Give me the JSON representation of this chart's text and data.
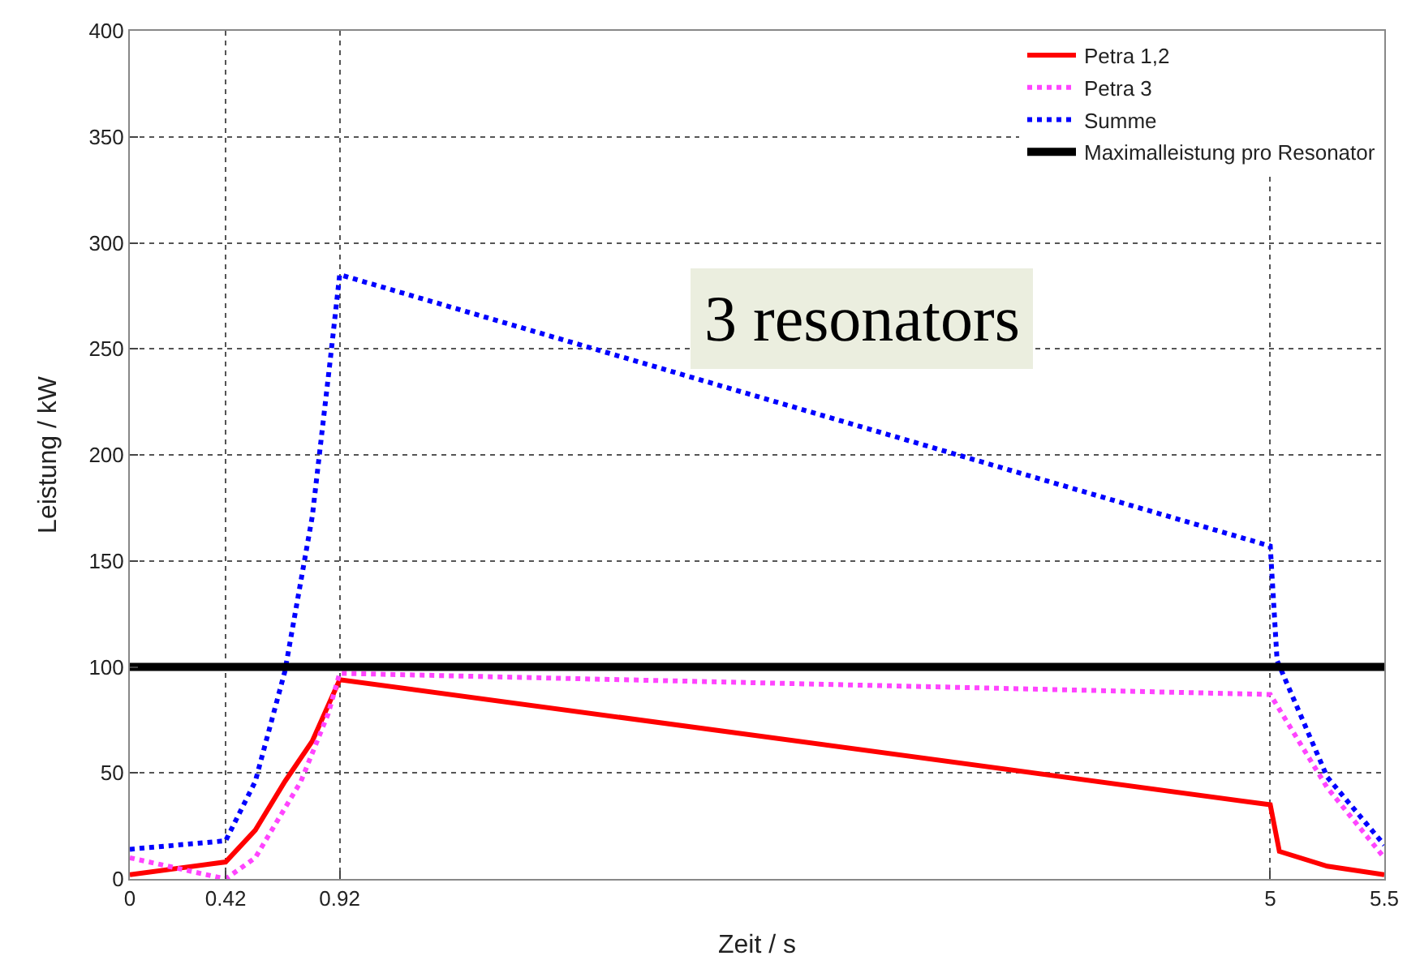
{
  "chart_data": {
    "type": "line",
    "xlabel": "Zeit / s",
    "ylabel": "Leistung / kW",
    "xlim": [
      0,
      5.5
    ],
    "xticks": [
      0,
      0.42,
      0.92,
      5,
      5.5
    ],
    "ylim": [
      0,
      400
    ],
    "yticks": [
      0,
      50,
      100,
      150,
      200,
      250,
      300,
      350,
      400
    ],
    "grid": true,
    "legend": "top right",
    "series": [
      {
        "name": "Petra 1,2",
        "color": "#ff0000",
        "line_style": "solid",
        "x": [
          0,
          0.42,
          0.55,
          0.68,
          0.8,
          0.92,
          5,
          5.04,
          5.25,
          5.5
        ],
        "values": [
          2,
          8,
          23,
          46,
          65,
          94,
          35,
          13,
          6,
          2
        ]
      },
      {
        "name": "Petra 3",
        "color": "#ff44ff",
        "line_style": "dotted",
        "x": [
          0,
          0.42,
          0.55,
          0.75,
          0.87,
          0.92,
          5,
          5.25,
          5.5
        ],
        "values": [
          10,
          0,
          10,
          46,
          78,
          97,
          87,
          43,
          10
        ]
      },
      {
        "name": "Summe",
        "color": "#0000ff",
        "line_style": "dotted",
        "x": [
          0,
          0.42,
          0.55,
          0.68,
          0.8,
          0.88,
          0.92,
          5,
          5.03,
          5.25,
          5.5
        ],
        "values": [
          14,
          18,
          46,
          98,
          171,
          246,
          285,
          157,
          103,
          48,
          16
        ]
      },
      {
        "name": "Maximalleistung pro Resonator",
        "color": "#000000",
        "line_style": "solid",
        "x": [
          0,
          5.5
        ],
        "values": [
          100,
          100
        ]
      }
    ],
    "annotations": [
      "3 resonators"
    ]
  }
}
